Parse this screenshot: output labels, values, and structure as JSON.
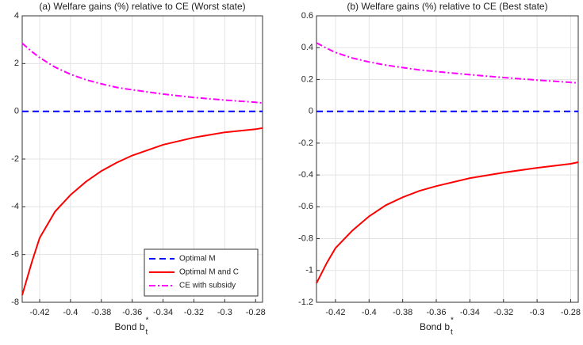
{
  "chart_data": [
    {
      "type": "line",
      "title": "(a) Welfare gains (%) relative to CE (Worst state)",
      "xlabel": {
        "text": "Bond b",
        "superscript": "*",
        "subscript": "t"
      },
      "x": [
        -0.4313,
        -0.425,
        -0.42,
        -0.41,
        -0.4,
        -0.39,
        -0.38,
        -0.37,
        -0.36,
        -0.34,
        -0.32,
        -0.3,
        -0.28,
        -0.2755
      ],
      "series": [
        {
          "name": "Optimal M",
          "color": "#0000ff",
          "linestyle": "--",
          "values": [
            0,
            0,
            0,
            0,
            0,
            0,
            0,
            0,
            0,
            0,
            0,
            0,
            0,
            0
          ]
        },
        {
          "name": "Optimal M and C",
          "color": "#ff0000",
          "linestyle": "-",
          "values": [
            -7.7,
            -6.3,
            -5.3,
            -4.2,
            -3.5,
            -2.95,
            -2.5,
            -2.15,
            -1.85,
            -1.4,
            -1.1,
            -0.88,
            -0.75,
            -0.7
          ]
        },
        {
          "name": "CE with subsidy",
          "color": "#ff00ff",
          "linestyle": "-.",
          "values": [
            2.85,
            2.5,
            2.25,
            1.85,
            1.55,
            1.32,
            1.15,
            1.0,
            0.9,
            0.72,
            0.58,
            0.47,
            0.38,
            0.35
          ]
        }
      ],
      "xlim": [
        -0.4313,
        -0.2755
      ],
      "xticks": [
        -0.42,
        -0.4,
        -0.38,
        -0.36,
        -0.34,
        -0.32,
        -0.3,
        -0.28
      ],
      "ylim": [
        -8,
        4
      ],
      "yticks": [
        -8,
        -6,
        -4,
        -2,
        0,
        2,
        4
      ],
      "grid": true,
      "legend": "lower right"
    },
    {
      "type": "line",
      "title": "(b) Welfare gains (%) relative to CE (Best state)",
      "xlabel": {
        "text": "Bond b",
        "superscript": "*",
        "subscript": "t"
      },
      "x": [
        -0.4313,
        -0.425,
        -0.42,
        -0.41,
        -0.4,
        -0.39,
        -0.38,
        -0.37,
        -0.36,
        -0.34,
        -0.32,
        -0.3,
        -0.28,
        -0.2755
      ],
      "series": [
        {
          "color": "#0000ff",
          "linestyle": "--",
          "values": [
            0,
            0,
            0,
            0,
            0,
            0,
            0,
            0,
            0,
            0,
            0,
            0,
            0,
            0
          ]
        },
        {
          "color": "#ff0000",
          "linestyle": "-",
          "values": [
            -1.08,
            -0.95,
            -0.86,
            -0.75,
            -0.66,
            -0.59,
            -0.54,
            -0.5,
            -0.47,
            -0.42,
            -0.385,
            -0.355,
            -0.33,
            -0.32
          ]
        },
        {
          "color": "#ff00ff",
          "linestyle": "-.",
          "values": [
            0.43,
            0.395,
            0.37,
            0.335,
            0.31,
            0.29,
            0.275,
            0.26,
            0.25,
            0.23,
            0.212,
            0.196,
            0.182,
            0.178
          ]
        }
      ],
      "xlim": [
        -0.4313,
        -0.2755
      ],
      "xticks": [
        -0.42,
        -0.4,
        -0.38,
        -0.36,
        -0.34,
        -0.32,
        -0.3,
        -0.28
      ],
      "ylim": [
        -1.2,
        0.6
      ],
      "yticks": [
        -1.2,
        -1,
        -0.8,
        -0.6,
        -0.4,
        -0.2,
        0,
        0.2,
        0.4,
        0.6
      ],
      "grid": true
    }
  ]
}
